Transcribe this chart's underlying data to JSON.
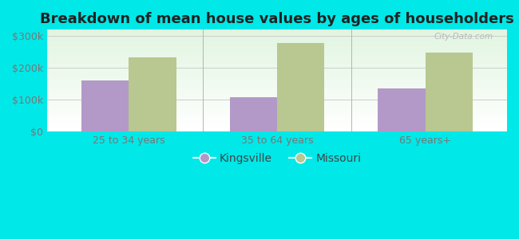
{
  "title": "Breakdown of mean house values by ages of householders",
  "categories": [
    "25 to 34 years",
    "35 to 64 years",
    "65 years+"
  ],
  "kingsville_values": [
    160000,
    107000,
    135000
  ],
  "missouri_values": [
    232000,
    278000,
    248000
  ],
  "bar_color_kingsville": "#b399c8",
  "bar_color_missouri": "#b8c890",
  "ylim": [
    0,
    320000
  ],
  "yticks": [
    0,
    100000,
    200000,
    300000
  ],
  "ytick_labels": [
    "$0",
    "$100k",
    "$200k",
    "$300k"
  ],
  "legend_labels": [
    "Kingsville",
    "Missouri"
  ],
  "background_outer": "#00e8e8",
  "title_fontsize": 13,
  "tick_fontsize": 9,
  "legend_fontsize": 10,
  "bar_width": 0.32,
  "watermark": "City-Data.com"
}
